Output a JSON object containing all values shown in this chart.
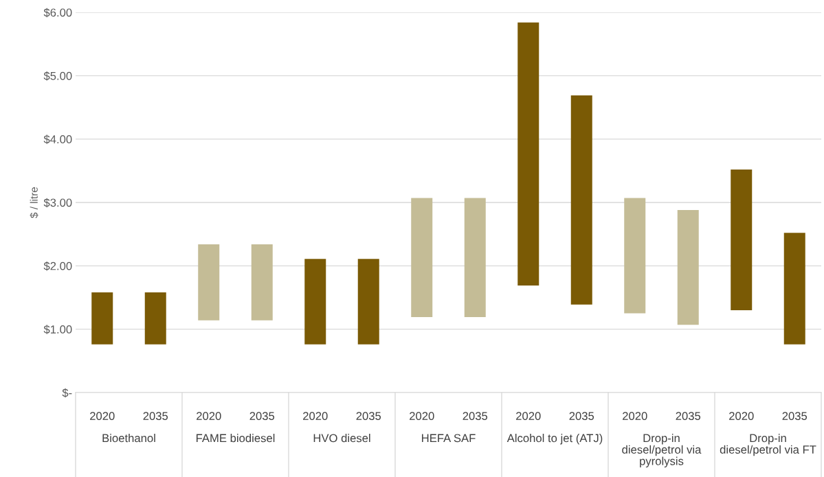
{
  "chart_data": {
    "type": "bar",
    "ylabel": "$ / litre",
    "categories": [
      "2020",
      "2035",
      "2020",
      "2035",
      "2020",
      "2035",
      "2020",
      "2035",
      "2020",
      "2035",
      "2020",
      "2035",
      "2020",
      "2035"
    ],
    "base": [
      0.76,
      0.76,
      1.14,
      1.14,
      0.76,
      0.76,
      1.19,
      1.19,
      1.69,
      1.39,
      1.25,
      1.07,
      1.3,
      0.76
    ],
    "values": [
      0.82,
      0.82,
      1.2,
      1.2,
      1.35,
      1.35,
      1.88,
      1.88,
      4.15,
      3.3,
      1.82,
      1.81,
      2.22,
      1.76
    ],
    "colors": [
      "#7a5a05",
      "#7a5a05",
      "#c4bc96",
      "#c4bc96",
      "#7a5a05",
      "#7a5a05",
      "#c4bc96",
      "#c4bc96",
      "#7a5a05",
      "#7a5a05",
      "#c4bc96",
      "#c4bc96",
      "#7a5a05",
      "#7a5a05"
    ],
    "annotations": [
      "Bioethanol",
      "FAME biodiesel",
      "HVO diesel",
      "HEFA SAF",
      "Alcohol to jet (ATJ)",
      "Drop-in diesel/petrol via pyrolysis",
      "Drop-in diesel/petrol via FT"
    ],
    "ylim": [
      0,
      6
    ],
    "yticks": [
      {
        "value": 0,
        "label": "$-"
      },
      {
        "value": 1,
        "label": "$1.00"
      },
      {
        "value": 2,
        "label": "$2.00"
      },
      {
        "value": 3,
        "label": "$3.00"
      },
      {
        "value": 4,
        "label": "$4.00"
      },
      {
        "value": 5,
        "label": "$5.00"
      },
      {
        "value": 6,
        "label": "$6.00"
      }
    ],
    "grid": "y"
  }
}
